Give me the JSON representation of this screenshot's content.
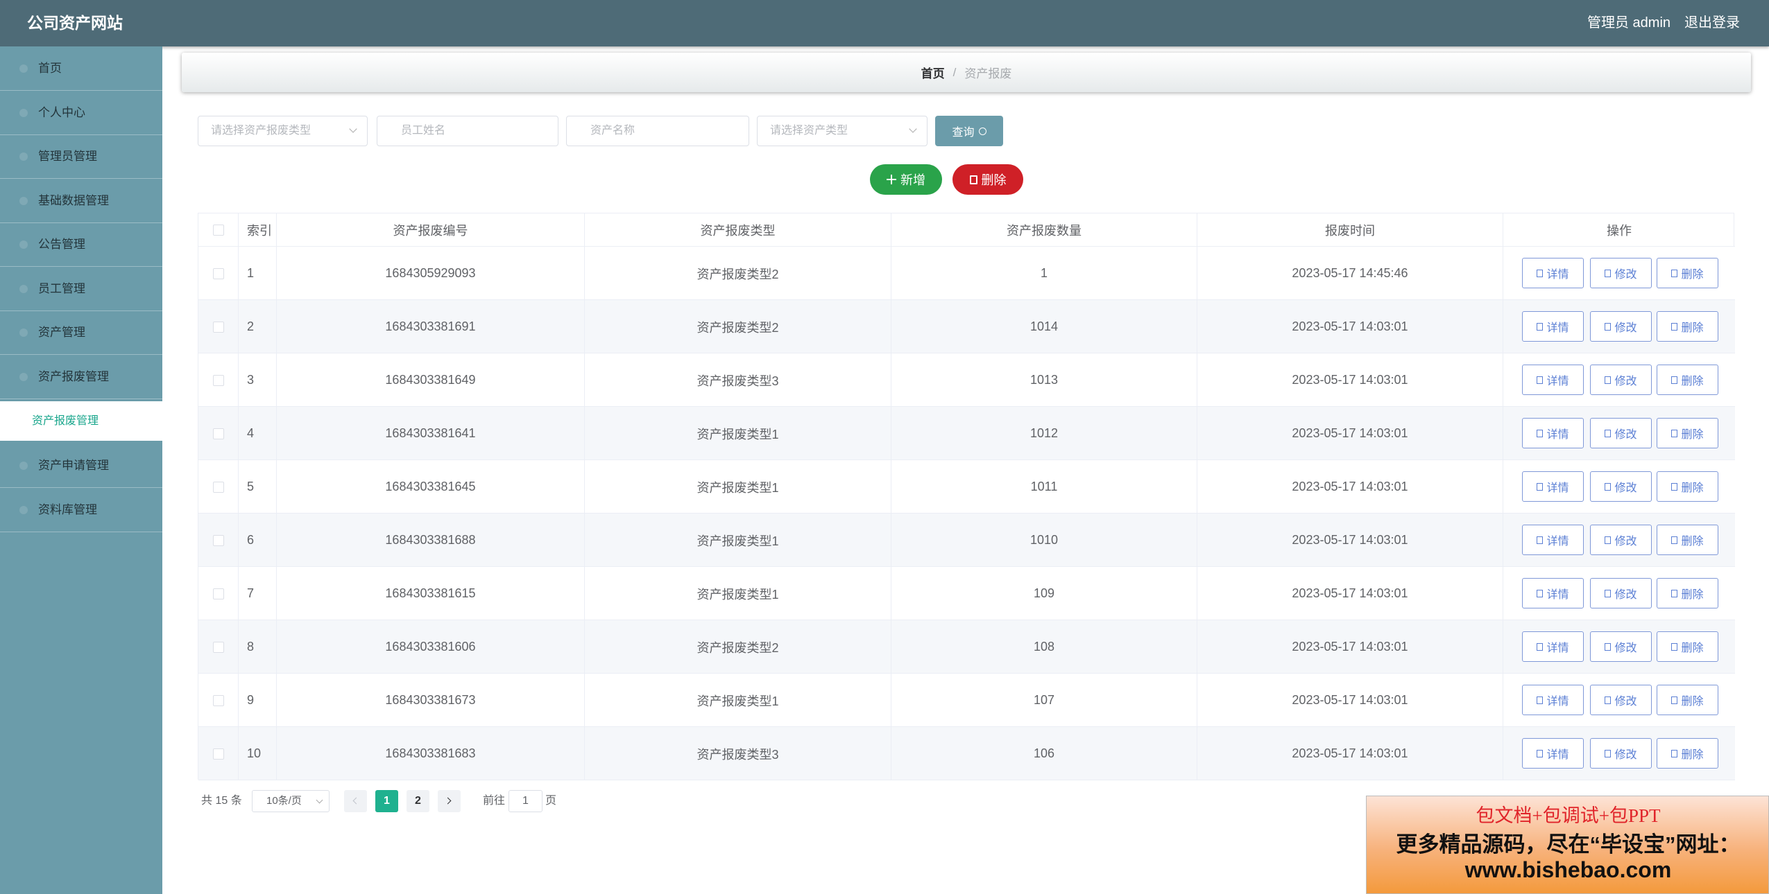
{
  "header": {
    "title": "公司资产网站",
    "user": "管理员 admin",
    "logout": "退出登录"
  },
  "sidebar": {
    "items": [
      "首页",
      "个人中心",
      "管理员管理",
      "基础数据管理",
      "公告管理",
      "员工管理",
      "资产管理",
      "资产报废管理"
    ],
    "active_sub": "资产报废管理",
    "items_after": [
      "资产申请管理",
      "资料库管理"
    ]
  },
  "breadcrumb": {
    "home": "首页",
    "separator": "/",
    "current": "资产报废"
  },
  "search": {
    "fields": [
      "请选择资产报废类型",
      "员工姓名",
      "资产名称",
      "请选择资产类型"
    ],
    "button": "查询"
  },
  "toolbar": {
    "add": "新增",
    "delete": "删除"
  },
  "table": {
    "headers": [
      "索引",
      "资产报废编号",
      "资产报废类型",
      "资产报废数量",
      "报废时间",
      "操作"
    ],
    "rows": [
      [
        "1",
        "1684305929093",
        "资产报废类型2",
        "1",
        "2023-05-17 14:45:46"
      ],
      [
        "2",
        "1684303381691",
        "资产报废类型2",
        "1014",
        "2023-05-17 14:03:01"
      ],
      [
        "3",
        "1684303381649",
        "资产报废类型3",
        "1013",
        "2023-05-17 14:03:01"
      ],
      [
        "4",
        "1684303381641",
        "资产报废类型1",
        "1012",
        "2023-05-17 14:03:01"
      ],
      [
        "5",
        "1684303381645",
        "资产报废类型1",
        "1011",
        "2023-05-17 14:03:01"
      ],
      [
        "6",
        "1684303381688",
        "资产报废类型1",
        "1010",
        "2023-05-17 14:03:01"
      ],
      [
        "7",
        "1684303381615",
        "资产报废类型1",
        "109",
        "2023-05-17 14:03:01"
      ],
      [
        "8",
        "1684303381606",
        "资产报废类型2",
        "108",
        "2023-05-17 14:03:01"
      ],
      [
        "9",
        "1684303381673",
        "资产报废类型1",
        "107",
        "2023-05-17 14:03:01"
      ],
      [
        "10",
        "1684303381683",
        "资产报废类型3",
        "106",
        "2023-05-17 14:03:01"
      ]
    ],
    "actions": [
      "详情",
      "修改",
      "删除"
    ]
  },
  "pagination": {
    "total": "共 15 条",
    "page_size": "10条/页",
    "pages": [
      "1",
      "2"
    ],
    "goto": "前往",
    "goto_value": "1",
    "page_unit": "页"
  },
  "ad": {
    "line1": "包文档+包调试+包PPT",
    "line2": "更多精品源码，尽在“毕设宝”网址：",
    "line3": "www.bishebao.com"
  }
}
